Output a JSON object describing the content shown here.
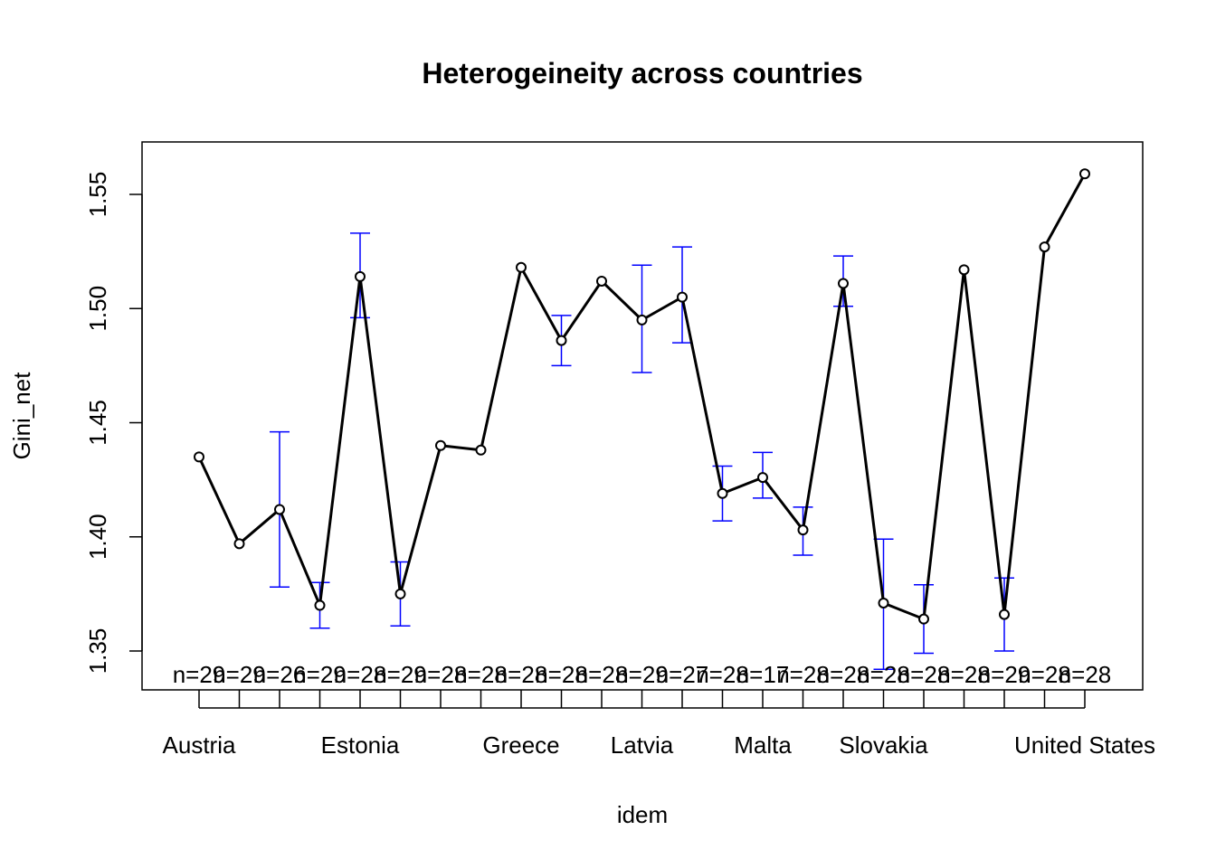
{
  "chart_data": {
    "type": "line",
    "title": "Heterogeineity across countries",
    "xlabel": "idem",
    "ylabel": "Gini_net",
    "ylim": [
      1.335,
      1.575
    ],
    "yticks": [
      "1.35",
      "1.40",
      "1.45",
      "1.50",
      "1.55"
    ],
    "ytick_values": [
      1.35,
      1.4,
      1.45,
      1.5,
      1.55
    ],
    "xtick_labels": [
      {
        "index": 1,
        "label": "Austria"
      },
      {
        "index": 5,
        "label": "Estonia"
      },
      {
        "index": 9,
        "label": "Greece"
      },
      {
        "index": 12,
        "label": "Latvia"
      },
      {
        "index": 15,
        "label": "Malta"
      },
      {
        "index": 18,
        "label": "Slovakia"
      },
      {
        "index": 23,
        "label": "United States"
      }
    ],
    "n_of_points": 23,
    "means": [
      1.435,
      1.397,
      1.412,
      1.37,
      1.514,
      1.375,
      1.44,
      1.438,
      1.518,
      1.486,
      1.512,
      1.495,
      1.505,
      1.419,
      1.426,
      1.403,
      1.511,
      1.371,
      1.364,
      1.517,
      1.366,
      1.527,
      1.559
    ],
    "ci_lower": [
      null,
      null,
      1.378,
      1.36,
      1.496,
      1.361,
      null,
      null,
      null,
      1.475,
      null,
      1.472,
      1.485,
      1.407,
      1.417,
      1.392,
      1.501,
      1.342,
      1.349,
      null,
      1.35,
      null,
      null
    ],
    "ci_upper": [
      null,
      null,
      1.446,
      1.38,
      1.533,
      1.389,
      null,
      null,
      null,
      1.497,
      null,
      1.519,
      1.527,
      1.431,
      1.437,
      1.413,
      1.523,
      1.399,
      1.379,
      null,
      1.382,
      null,
      null
    ],
    "n_labels": [
      "n=29",
      "n=29",
      "n=26",
      "n=29",
      "n=28",
      "n=29",
      "n=28",
      "n=28",
      "n=28",
      "n=28",
      "n=28",
      "n=29",
      "n=27",
      "n=28",
      "n=17",
      "n=28",
      "n=28",
      "n=28",
      "n=28",
      "n=28",
      "n=29",
      "n=28",
      "n=28"
    ],
    "colors": {
      "line": "#000000",
      "ci": "#0000ff",
      "axis": "#000000"
    }
  }
}
